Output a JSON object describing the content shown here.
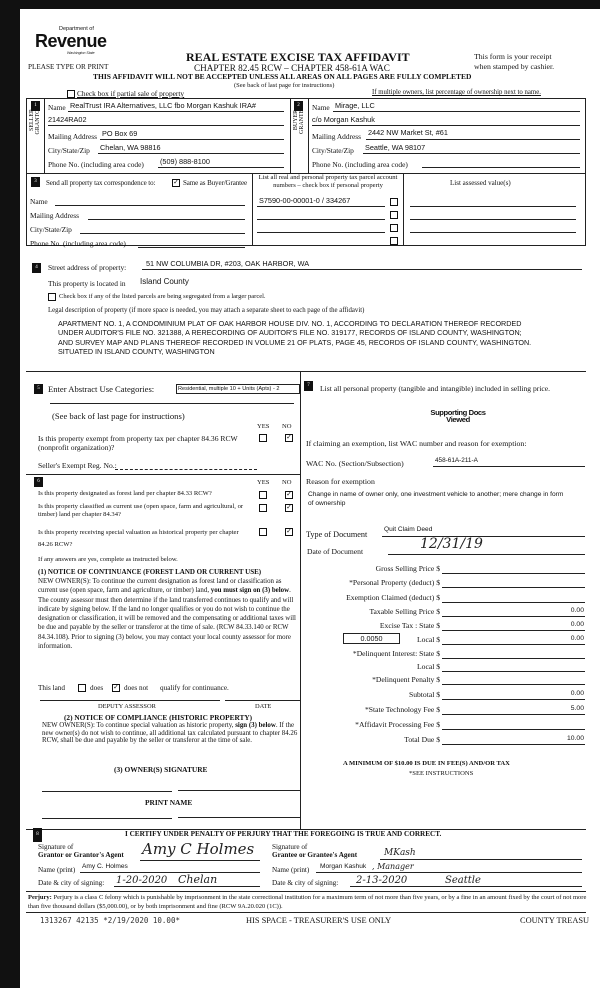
{
  "header": {
    "logo_dept": "Department of",
    "logo_name": "Revenue",
    "logo_state": "Washington State",
    "please": "PLEASE TYPE OR PRINT",
    "title": "REAL ESTATE EXCISE TAX AFFIDAVIT",
    "chapter": "CHAPTER 82.45 RCW – CHAPTER 458-61A WAC",
    "warning": "THIS AFFIDAVIT WILL NOT BE ACCEPTED UNLESS ALL AREAS ON ALL PAGES ARE FULLY COMPLETED",
    "see_back": "(See back of last page for instructions)",
    "receipt1": "This form is your receipt",
    "receipt2": "when stamped by cashier.",
    "partial_sale": "Check box if partial sale of property",
    "multiple_owners": "If multiple owners, list percentage of ownership next to name."
  },
  "seller": {
    "num": "1",
    "side": "SELLER GRANTOR",
    "name_label": "Name",
    "name": "RealTrust IRA Alternatives, LLC fbo Morgan Kashuk IRA#",
    "name2": "21424RA02",
    "mail_label": "Mailing Address",
    "mail": "PO Box 69",
    "city_label": "City/State/Zip",
    "city": "Chelan, WA 98816",
    "phone_label": "Phone No. (including area code)",
    "phone": "(509) 888-8100"
  },
  "buyer": {
    "num": "2",
    "side": "BUYER GRANTEE",
    "name_label": "Name",
    "name": "Mirage, LLC",
    "name2": "c/o Morgan Kashuk",
    "mail_label": "Mailing Address",
    "mail": "2442 NW Market St, #61",
    "city_label": "City/State/Zip",
    "city": "Seattle, WA 98107",
    "phone_label": "Phone No. (including area code)",
    "phone": ""
  },
  "correspondence": {
    "num": "3",
    "label": "Send all property tax correspondence to:",
    "same_checked": true,
    "same_label": "Same as Buyer/Grantee",
    "name_label": "Name",
    "mail_label": "Mailing Address",
    "city_label": "City/State/Zip",
    "phone_label": "Phone No. (including area code)"
  },
  "parcels": {
    "header": "List all real and personal property tax parcel account numbers – check box if personal property",
    "values_header": "List assessed value(s)",
    "items": [
      "S7590-00-00001-0 / 334267",
      "",
      "",
      ""
    ]
  },
  "property": {
    "num": "4",
    "street_label": "Street address of property:",
    "street": "51 NW COLUMBIA DR, #203, OAK HARBOR, WA",
    "located_label": "This property is located in",
    "county": "Island County",
    "segregated": "Check box if any of the listed parcels are being segregated from a larger parcel.",
    "legal_label": "Legal description of property (if more space is needed, you may attach a separate sheet to each page of the affidavit)",
    "legal": "APARTMENT NO. 1, A CONDOMINIUM PLAT OF OAK HARBOR HOUSE DIV. NO. 1, ACCORDING TO DECLARATION THEREOF RECORDED UNDER AUDITOR'S FILE NO. 321388, A RERECORDING OF AUDITOR'S FILE NO. 319177, RECORDS OF ISLAND COUNTY, WASHINGTON; AND SURVEY MAP AND PLANS THEREOF RECORDED IN VOLUME 21 OF PLATS, PAGE 45, RECORDS OF ISLAND COUNTY, WASHINGTON.  SITUATED IN ISLAND COUNTY, WASHINGTON"
  },
  "section5": {
    "num": "5",
    "label": "Enter Abstract Use Categories:",
    "category": "Residential, multiple 10 + Units (Apts) - 2",
    "see_back": "(See back of last page for instructions)",
    "yes": "YES",
    "no": "NO",
    "q1": "Is this property exempt from property tax per chapter 84.36 RCW (nonprofit organization)?",
    "q1_answer": "no",
    "exempt_reg": "Seller's Exempt Reg. No.:"
  },
  "section6": {
    "num": "6",
    "yes": "YES",
    "no": "NO",
    "q1": "Is this property designated as forest land per chapter 84.33 RCW?",
    "q2": "Is this property classified as current use (open space, farm and agricultural, or timber) land per chapter 84.34?",
    "q3": "Is this property receiving special valuation as historical property per chapter 84.26 RCW?",
    "answers": [
      "no",
      "no",
      "no"
    ],
    "if_yes": "If any answers are yes, complete as instructed below.",
    "n1_title": "(1) NOTICE OF CONTINUANCE (FOREST LAND OR CURRENT USE)",
    "n1_a": "NEW OWNER(S): To continue the current designation as forest land or classification as current use (open space, farm and agriculture, or timber) land, ",
    "n1_bold": "you must sign on (3) below",
    "n1_b": ". The county assessor must then determine if the land transferred continues to qualify and will indicate by signing below. If the land no longer qualifies or you do not wish to continue the designation or classification, it will be removed and the compensating or additional taxes will be due and payable by the seller or transferor at the time of sale. (RCW 84.33.140 or RCW 84.34.108). Prior to signing (3) below, you may contact your local county assessor for more information.",
    "this_land": "This land",
    "does": "does",
    "does_not": "does not",
    "qualify": "qualify for continuance.",
    "continuance": "does not",
    "deputy": "DEPUTY ASSESSOR",
    "date": "DATE",
    "n2_title": "(2) NOTICE OF COMPLIANCE (HISTORIC PROPERTY)",
    "n2_a": "NEW OWNER(S): To continue special valuation as historic property, ",
    "n2_bold": "sign (3) below",
    "n2_b": ". If the new owner(s) do not wish to continue, all additional tax calculated pursuant to chapter 84.26 RCW, shall be due and payable by the seller or transferor at the time of sale.",
    "n3_title": "(3) OWNER(S) SIGNATURE",
    "print_name": "PRINT NAME"
  },
  "section7": {
    "num": "7",
    "label": "List all  personal property (tangible and intangible) included in selling price.",
    "stamp": "Supporting Docs Viewed",
    "claiming": "If claiming an exemption, list WAC number and reason for exemption:",
    "wac_label": "WAC No. (Section/Subsection)",
    "wac": "458-61A-211-A",
    "reason_label": "Reason for exemption",
    "reason": "Change in name of owner only, one investment vehicle to another; mere change in form of ownership",
    "doc_type_label": "Type of Document",
    "doc_type": "Quit Claim Deed",
    "doc_date_label": "Date of Document",
    "doc_date": "12/31/19",
    "rate": "0.0050",
    "amounts": [
      {
        "label": "Gross Selling Price $",
        "value": ""
      },
      {
        "label": "*Personal Property (deduct) $",
        "value": ""
      },
      {
        "label": "Exemption Claimed (deduct) $",
        "value": ""
      },
      {
        "label": "Taxable Selling Price $",
        "value": "0.00"
      },
      {
        "label": "Excise Tax : State $",
        "value": "0.00"
      },
      {
        "label": "Local $",
        "value": "0.00"
      },
      {
        "label": "*Delinquent Interest: State $",
        "value": ""
      },
      {
        "label": "Local $",
        "value": ""
      },
      {
        "label": "*Delinquent Penalty $",
        "value": ""
      },
      {
        "label": "Subtotal $",
        "value": "0.00"
      },
      {
        "label": "*State Technology Fee $",
        "value": "5.00"
      },
      {
        "label": "*Affidavit Processing Fee $",
        "value": ""
      },
      {
        "label": "Total Due $",
        "value": "10.00"
      }
    ],
    "minimum": "A MINIMUM OF $10.00 IS DUE IN FEE(S) AND/OR TAX",
    "see_instr": "*SEE INSTRUCTIONS"
  },
  "section8": {
    "num": "8",
    "certify": "I CERTIFY UNDER PENALTY OF PERJURY THAT THE FOREGOING IS TRUE AND CORRECT.",
    "sig_label1": "Signature of",
    "grantor_label": "Grantor or Grantor's Agent",
    "grantor_sig": "Amy C Holmes",
    "grantee_label": "Grantee or Grantee's Agent",
    "grantee_sig": "MKash",
    "name_label": "Name (print)",
    "grantor_name": "Amy C. Holmes",
    "grantee_name": "Morgan Kashuk",
    "grantee_title": ", Manager",
    "date_label": "Date & city of signing:",
    "grantor_date": "1-20-2020",
    "grantor_city": "Chelan",
    "grantee_date": "2-13-2020",
    "grantee_city": "Seattle"
  },
  "perjury": {
    "bold": "Perjury:",
    "text": " Perjury is a class C felony which is punishable by imprisonment in the state correctional institution for a maximum term of not more than five years, or by a fine in an amount fixed by the court of not more than five thousand dollars ($5,000.00), or by both imprisonment and fine (RCW 9A.20.020 (1C))."
  },
  "footer": {
    "receipt": "1313267 42135 *2/19/2020 10.00*",
    "treasurer": "HIS SPACE - TREASURER'S USE ONLY",
    "county": "COUNTY TREASU"
  }
}
